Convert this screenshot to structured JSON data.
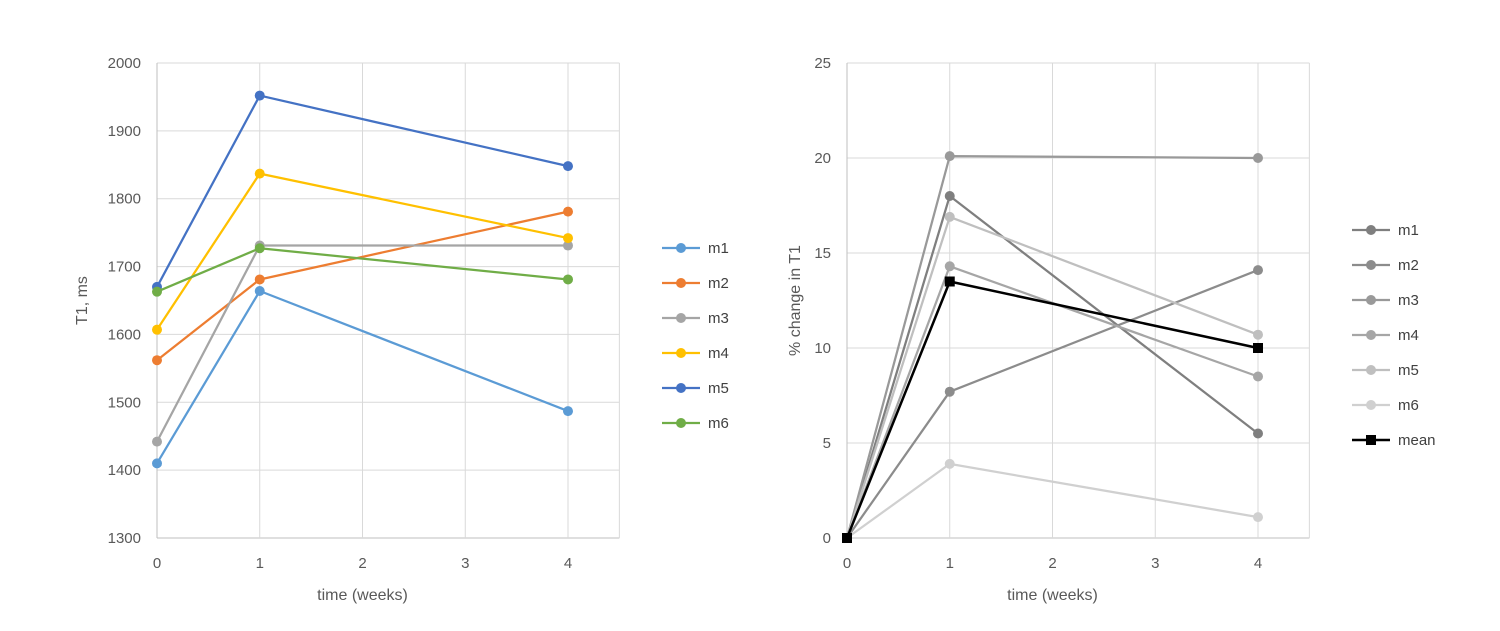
{
  "chart_data": [
    {
      "type": "line",
      "title": "",
      "xlabel": "time (weeks)",
      "ylabel": "T1, ms",
      "x": [
        0,
        1,
        4
      ],
      "xticks": [
        0,
        1,
        2,
        3,
        4
      ],
      "ylim": [
        1300,
        2000
      ],
      "yticks": [
        1300,
        1400,
        1500,
        1600,
        1700,
        1800,
        1900,
        2000
      ],
      "grid": true,
      "legend": "right",
      "series": [
        {
          "name": "m1",
          "values": [
            1410,
            1664,
            1487
          ],
          "color": "#5b9bd5",
          "marker": "circle"
        },
        {
          "name": "m2",
          "values": [
            1562,
            1681,
            1781
          ],
          "color": "#ed7d31",
          "marker": "circle"
        },
        {
          "name": "m3",
          "values": [
            1442,
            1731,
            1731
          ],
          "color": "#a5a5a5",
          "marker": "circle"
        },
        {
          "name": "m4",
          "values": [
            1607,
            1837,
            1742
          ],
          "color": "#ffc000",
          "marker": "circle"
        },
        {
          "name": "m5",
          "values": [
            1670,
            1952,
            1848
          ],
          "color": "#4472c4",
          "marker": "circle"
        },
        {
          "name": "m6",
          "values": [
            1663,
            1727,
            1681
          ],
          "color": "#70ad47",
          "marker": "circle"
        }
      ]
    },
    {
      "type": "line",
      "title": "",
      "xlabel": "time (weeks)",
      "ylabel": "% change in T1",
      "x": [
        0,
        1,
        4
      ],
      "xticks": [
        0,
        1,
        2,
        3,
        4
      ],
      "ylim": [
        0,
        25
      ],
      "yticks": [
        0,
        5,
        10,
        15,
        20,
        25
      ],
      "grid": true,
      "legend": "right",
      "series": [
        {
          "name": "m1",
          "values": [
            0,
            18.0,
            5.5
          ],
          "color": "#7f7f7f",
          "marker": "circle"
        },
        {
          "name": "m2",
          "values": [
            0,
            7.7,
            14.1
          ],
          "color": "#8c8c8c",
          "marker": "circle"
        },
        {
          "name": "m3",
          "values": [
            0,
            20.1,
            20.0
          ],
          "color": "#999999",
          "marker": "circle"
        },
        {
          "name": "m4",
          "values": [
            0,
            14.3,
            8.5
          ],
          "color": "#a6a6a6",
          "marker": "circle"
        },
        {
          "name": "m5",
          "values": [
            0,
            16.9,
            10.7
          ],
          "color": "#bfbfbf",
          "marker": "circle"
        },
        {
          "name": "m6",
          "values": [
            0,
            3.9,
            1.1
          ],
          "color": "#d0d0d0",
          "marker": "circle"
        },
        {
          "name": "mean",
          "values": [
            0,
            13.5,
            10.0
          ],
          "color": "#000000",
          "marker": "square"
        }
      ]
    }
  ]
}
